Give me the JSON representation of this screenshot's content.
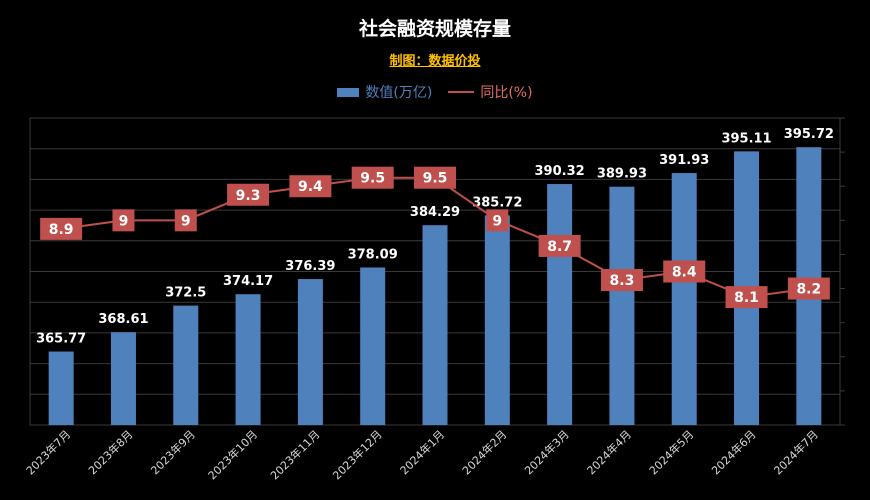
{
  "chart_data": {
    "type": "bar",
    "title": "社会融资规模存量",
    "subtitle": "制图：数据价投",
    "categories": [
      "2023年7月",
      "2023年8月",
      "2023年9月",
      "2023年10月",
      "2023年11月",
      "2023年12月",
      "2024年1月",
      "2024年2月",
      "2024年3月",
      "2024年4月",
      "2024年5月",
      "2024年6月",
      "2024年7月"
    ],
    "series": [
      {
        "name": "数值(万亿)",
        "type": "bar",
        "values": [
          365.77,
          368.61,
          372.5,
          374.17,
          376.39,
          378.09,
          384.29,
          385.72,
          390.32,
          389.93,
          391.93,
          395.11,
          395.72
        ],
        "labels": [
          "365.77",
          "368.61",
          "372.5",
          "374.17",
          "376.39",
          "378.09",
          "384.29",
          "385.72",
          "390.32",
          "389.93",
          "391.93",
          "395.11",
          "395.72"
        ]
      },
      {
        "name": "同比(%)",
        "type": "line",
        "values": [
          8.9,
          9,
          9,
          9.3,
          9.4,
          9.5,
          9.5,
          9,
          8.7,
          8.3,
          8.4,
          8.1,
          8.2
        ],
        "labels": [
          "8.9",
          "9",
          "9",
          "9.3",
          "9.4",
          "9.5",
          "9.5",
          "9",
          "8.7",
          "8.3",
          "8.4",
          "8.1",
          "8.2"
        ]
      }
    ],
    "ylim": [
      355,
      400
    ],
    "y2lim": [
      6.6,
      10.2
    ],
    "grid": true,
    "legend": "top-center",
    "colors": {
      "bar": "#4f81bd",
      "line": "#c0504d",
      "label_box": "#c0504d",
      "background": "#000000",
      "title": "#ffffff",
      "subtitle": "#ffc000"
    }
  }
}
